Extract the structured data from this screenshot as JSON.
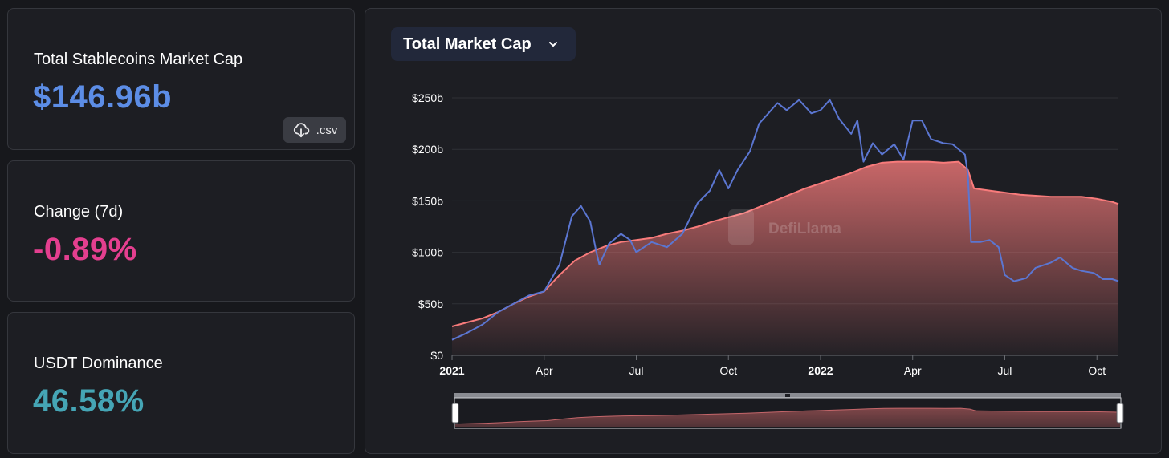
{
  "stats": [
    {
      "label": "Total Stablecoins Market Cap",
      "value": "$146.96b",
      "color": "#5c8de6"
    },
    {
      "label": "Change (7d)",
      "value": "-0.89%",
      "color": "#e43f8f"
    },
    {
      "label": "USDT Dominance",
      "value": "46.58%",
      "color": "#45a5b5"
    }
  ],
  "csv_button": {
    "label": ".csv",
    "icon": "download-cloud-icon"
  },
  "chart_selector": {
    "label": "Total Market Cap",
    "icon": "chevron-down-icon"
  },
  "watermark": "DefiLlama",
  "colors": {
    "total": "#f87b7b",
    "series_blue": "#5b76d1",
    "panel": "#1d1e23"
  },
  "chart_data": {
    "type": "area",
    "y_ticks": [
      "$0",
      "$50b",
      "$100b",
      "$150b",
      "$200b",
      "$250b"
    ],
    "ylim": [
      0,
      250
    ],
    "x_ticks": [
      {
        "label": "2021",
        "x": 0,
        "bold": true
      },
      {
        "label": "Apr",
        "x": 3
      },
      {
        "label": "Jul",
        "x": 6
      },
      {
        "label": "Oct",
        "x": 9
      },
      {
        "label": "2022",
        "x": 12,
        "bold": true
      },
      {
        "label": "Apr",
        "x": 15
      },
      {
        "label": "Jul",
        "x": 18
      },
      {
        "label": "Oct",
        "x": 21
      }
    ],
    "xlim": [
      0,
      21.7
    ],
    "grid": true,
    "series": [
      {
        "style": "area",
        "points": [
          [
            0,
            28
          ],
          [
            0.5,
            32
          ],
          [
            1,
            36
          ],
          [
            1.5,
            42
          ],
          [
            2,
            50
          ],
          [
            2.5,
            57
          ],
          [
            3,
            62
          ],
          [
            3.5,
            78
          ],
          [
            4,
            92
          ],
          [
            4.5,
            100
          ],
          [
            5,
            106
          ],
          [
            5.5,
            110
          ],
          [
            6,
            112
          ],
          [
            6.5,
            114
          ],
          [
            7,
            118
          ],
          [
            7.5,
            121
          ],
          [
            8,
            125
          ],
          [
            8.5,
            130
          ],
          [
            9,
            134
          ],
          [
            9.5,
            138
          ],
          [
            10,
            144
          ],
          [
            10.5,
            150
          ],
          [
            11,
            156
          ],
          [
            11.5,
            162
          ],
          [
            12,
            167
          ],
          [
            12.5,
            172
          ],
          [
            13,
            177
          ],
          [
            13.5,
            183
          ],
          [
            14,
            187
          ],
          [
            14.5,
            188
          ],
          [
            15,
            188
          ],
          [
            15.5,
            188
          ],
          [
            16,
            187
          ],
          [
            16.5,
            188
          ],
          [
            16.8,
            180
          ],
          [
            17,
            162
          ],
          [
            17.5,
            160
          ],
          [
            18,
            158
          ],
          [
            18.5,
            156
          ],
          [
            19,
            155
          ],
          [
            19.5,
            154
          ],
          [
            20,
            154
          ],
          [
            20.5,
            154
          ],
          [
            21,
            152
          ],
          [
            21.5,
            149
          ],
          [
            21.7,
            147
          ]
        ]
      },
      {
        "style": "line",
        "points": [
          [
            0,
            15
          ],
          [
            0.5,
            22
          ],
          [
            1,
            30
          ],
          [
            1.5,
            42
          ],
          [
            2,
            50
          ],
          [
            2.5,
            58
          ],
          [
            3,
            62
          ],
          [
            3.5,
            88
          ],
          [
            3.9,
            135
          ],
          [
            4.2,
            145
          ],
          [
            4.5,
            130
          ],
          [
            4.7,
            100
          ],
          [
            4.8,
            88
          ],
          [
            5.1,
            108
          ],
          [
            5.5,
            118
          ],
          [
            5.8,
            112
          ],
          [
            6,
            100
          ],
          [
            6.5,
            110
          ],
          [
            7,
            105
          ],
          [
            7.5,
            118
          ],
          [
            8,
            148
          ],
          [
            8.4,
            160
          ],
          [
            8.7,
            180
          ],
          [
            9,
            162
          ],
          [
            9.3,
            180
          ],
          [
            9.7,
            198
          ],
          [
            10,
            225
          ],
          [
            10.3,
            235
          ],
          [
            10.6,
            245
          ],
          [
            10.9,
            238
          ],
          [
            11.3,
            248
          ],
          [
            11.7,
            235
          ],
          [
            12,
            238
          ],
          [
            12.3,
            248
          ],
          [
            12.6,
            230
          ],
          [
            13,
            215
          ],
          [
            13.2,
            228
          ],
          [
            13.4,
            188
          ],
          [
            13.7,
            206
          ],
          [
            14,
            195
          ],
          [
            14.4,
            205
          ],
          [
            14.7,
            190
          ],
          [
            15,
            228
          ],
          [
            15.3,
            228
          ],
          [
            15.6,
            210
          ],
          [
            16,
            206
          ],
          [
            16.3,
            205
          ],
          [
            16.7,
            195
          ],
          [
            16.8,
            175
          ],
          [
            16.9,
            110
          ],
          [
            17.2,
            110
          ],
          [
            17.5,
            112
          ],
          [
            17.8,
            105
          ],
          [
            18,
            78
          ],
          [
            18.3,
            72
          ],
          [
            18.7,
            75
          ],
          [
            19,
            85
          ],
          [
            19.5,
            90
          ],
          [
            19.8,
            95
          ],
          [
            20.2,
            85
          ],
          [
            20.5,
            82
          ],
          [
            20.9,
            80
          ],
          [
            21.2,
            74
          ],
          [
            21.5,
            74
          ],
          [
            21.7,
            72
          ]
        ]
      }
    ]
  }
}
